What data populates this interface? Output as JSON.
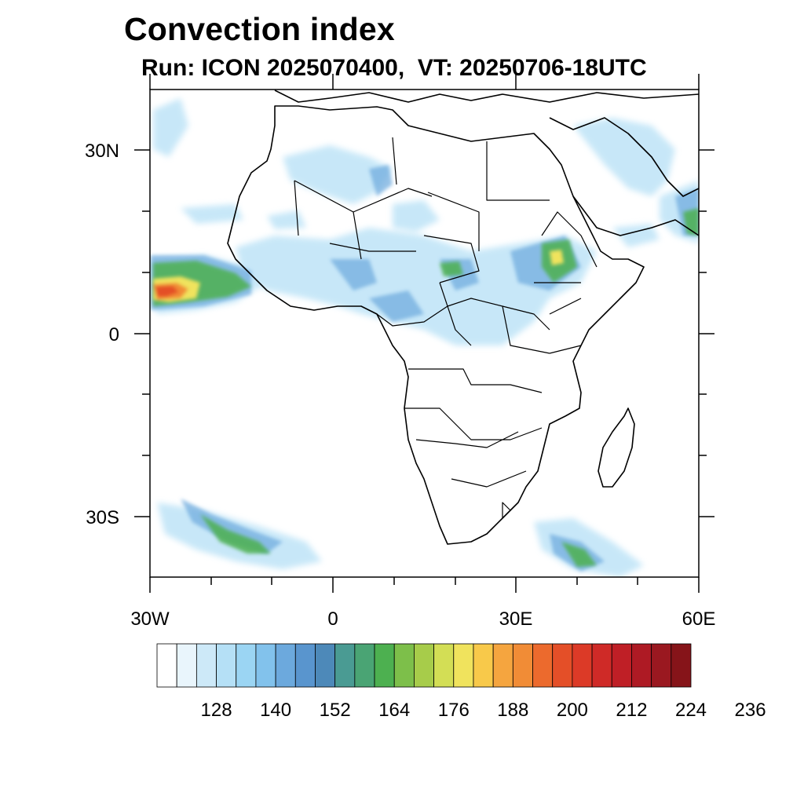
{
  "title": "Convection index",
  "subtitle": "Run: ICON 2025070400,  VT: 20250706-18UTC",
  "map": {
    "lon_range": [
      -30,
      60
    ],
    "lat_range": [
      -40,
      40
    ],
    "y_tick_labels": [
      {
        "label": "30N",
        "lat": 30
      },
      {
        "label": "0",
        "lat": 0
      },
      {
        "label": "30S",
        "lat": -30
      }
    ],
    "x_tick_labels": [
      {
        "label": "30W",
        "lon": -30
      },
      {
        "label": "0",
        "lon": 0
      },
      {
        "label": "30E",
        "lon": 30
      },
      {
        "label": "60E",
        "lon": 60
      }
    ]
  },
  "colorbar": {
    "colors": [
      "#ffffff",
      "#e9f5fc",
      "#cde9f8",
      "#b5e0f6",
      "#9bd5f3",
      "#82c2ec",
      "#6ca9dd",
      "#5995ce",
      "#4d89b9",
      "#4a9b93",
      "#4aa474",
      "#4db050",
      "#7dbf4a",
      "#a7cc4a",
      "#d3de55",
      "#f0e35d",
      "#f8c94a",
      "#f5a53f",
      "#f18c36",
      "#ec6a2d",
      "#e44f28",
      "#dc3a27",
      "#cf2a27",
      "#bf1f26",
      "#ae1a24",
      "#9a1820",
      "#861419"
    ],
    "labels": [
      "128",
      "140",
      "152",
      "164",
      "176",
      "188",
      "200",
      "212",
      "224",
      "236"
    ]
  }
}
